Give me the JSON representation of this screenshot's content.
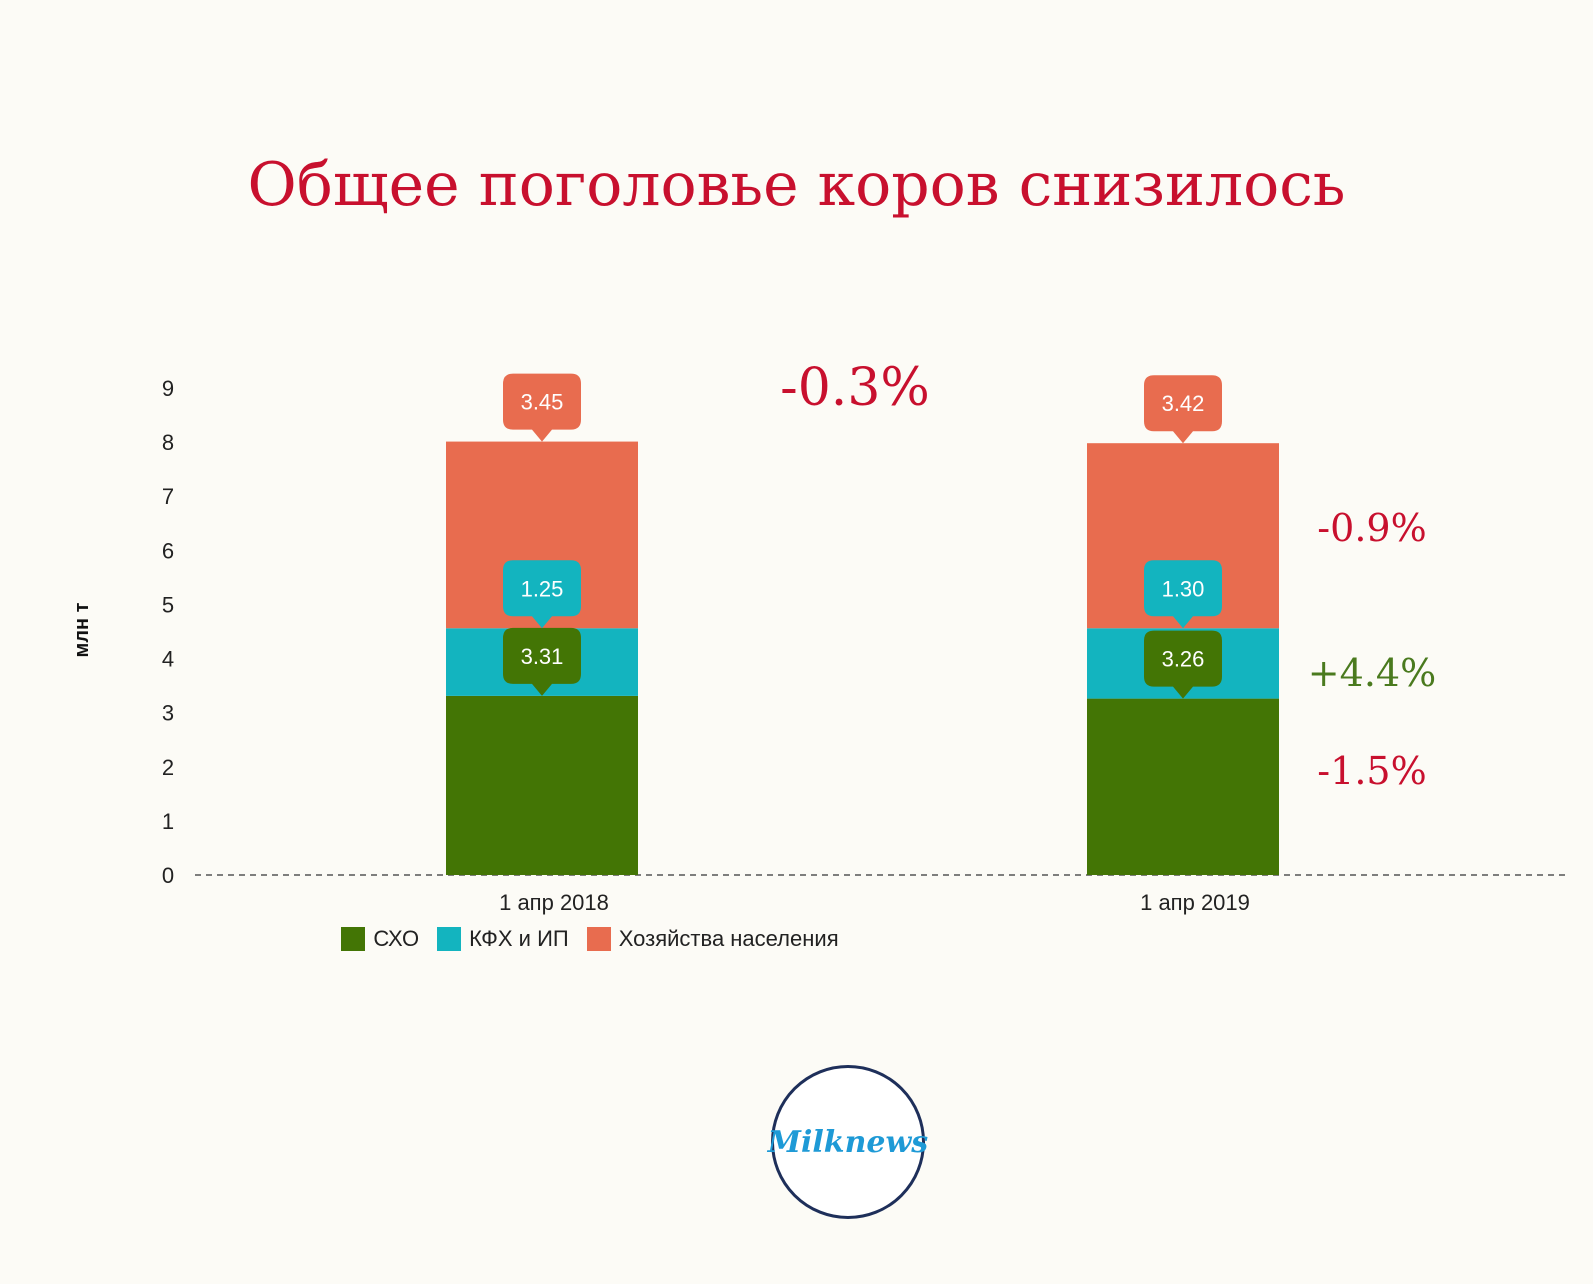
{
  "title": "Общее поголовье коров снизилось",
  "logo": "Milknews",
  "colors": {
    "background": "#fcfbf6",
    "title": "#c8102e",
    "negative": "#c8102e",
    "positive": "#4a7a1e",
    "сxo": "#437505",
    "kfx": "#13b4bf",
    "households": "#e86c4f"
  },
  "chart_data": {
    "type": "bar",
    "stacked": true,
    "categories": [
      "1 апр 2018",
      "1 апр 2019"
    ],
    "series": [
      {
        "name": "СХО",
        "color": "#437505",
        "values": [
          3.31,
          3.26
        ]
      },
      {
        "name": "КФХ и ИП",
        "color": "#13b4bf",
        "values": [
          1.25,
          1.3
        ]
      },
      {
        "name": "Хозяйства населения",
        "color": "#e86c4f",
        "values": [
          3.45,
          3.42
        ]
      }
    ],
    "data_labels": [
      [
        "3.31",
        "3.26"
      ],
      [
        "1.25",
        "1.30"
      ],
      [
        "3.45",
        "3.42"
      ]
    ],
    "ylabel": "млн т",
    "ylim": [
      0,
      9
    ],
    "yticks": [
      "0",
      "1",
      "2",
      "3",
      "4",
      "5",
      "6",
      "7",
      "8",
      "9"
    ],
    "legend_position": "bottom",
    "annotations": {
      "total_change": "-0.3%",
      "series_changes": [
        {
          "text": "-1.5%",
          "sign": "negative"
        },
        {
          "text": "+4.4%",
          "sign": "positive"
        },
        {
          "text": "-0.9%",
          "sign": "negative"
        }
      ]
    }
  }
}
